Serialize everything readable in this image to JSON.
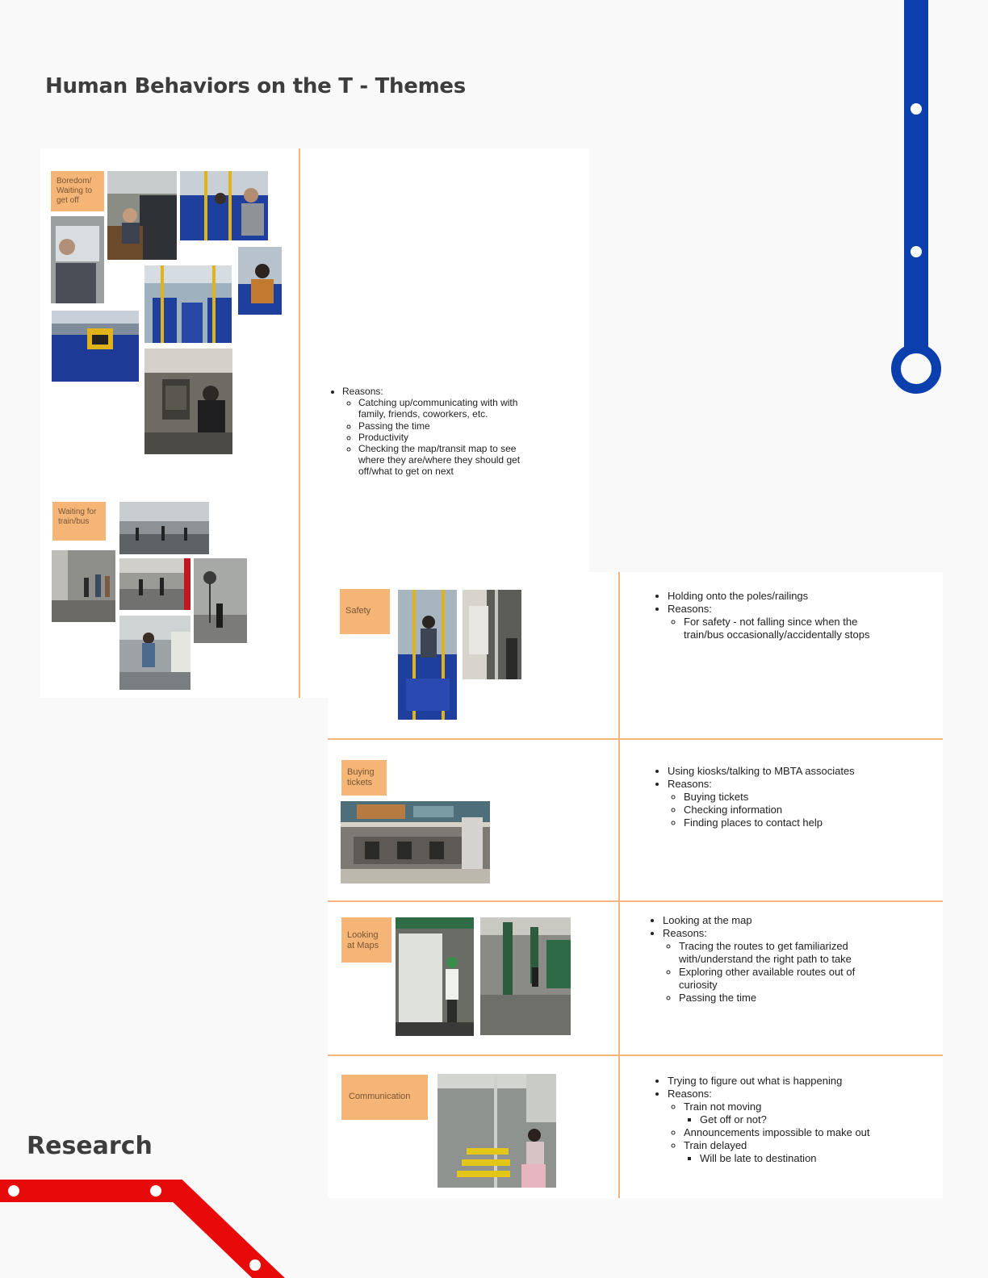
{
  "page": {
    "title": "Human Behaviors on the T - Themes",
    "footer_label": "Research"
  },
  "colors": {
    "blue_line": "#0b3fae",
    "red_line": "#e80a0a",
    "sticky": "#f4b577",
    "divider": "#f3b47e"
  },
  "board": {
    "boredom": {
      "sticky": "Boredom/ Waiting to get off",
      "notes": {
        "intro": "Reasons:",
        "items": [
          "Catching up/communicating with with family, friends, coworkers, etc.",
          "Passing the time",
          "Productivity",
          "Checking the map/transit map to see where they are/where they should get off/what to get on next"
        ]
      }
    },
    "waiting": {
      "sticky": "Waiting for train/bus"
    },
    "safety": {
      "sticky": "Safety",
      "notes": {
        "item1": "Holding onto the poles/railings",
        "item2": "Reasons:",
        "sub": [
          "For safety - not falling since when the train/bus occasionally/accidentally stops"
        ]
      }
    },
    "tickets": {
      "sticky": "Buying tickets",
      "notes": {
        "item1": "Using kiosks/talking to MBTA associates",
        "item2": "Reasons:",
        "sub": [
          "Buying tickets",
          "Checking information",
          "Finding places to contact help"
        ]
      }
    },
    "maps": {
      "sticky": "Looking at Maps",
      "notes": {
        "item1": "Looking at the map",
        "item2": "Reasons:",
        "sub": [
          "Tracing the routes to get familiarized with/understand the right path to take",
          "Exploring other available routes out of curiosity",
          "Passing the time"
        ]
      }
    },
    "communication": {
      "sticky": "Communication",
      "notes": {
        "item1": "Trying to figure out what is happening",
        "item2": "Reasons:",
        "sub1": "Train not moving",
        "sub1a": "Get off or not?",
        "sub2": "Announcements impossible to make out",
        "sub3": "Train delayed",
        "sub3a": "Will be late to destination"
      }
    }
  },
  "photos": [
    {
      "name": "photo-bus-passengers-seated",
      "theme": "bus"
    },
    {
      "name": "photo-bus-window-passenger",
      "theme": "window"
    },
    {
      "name": "photo-bus-seat-rider",
      "theme": "bus"
    },
    {
      "name": "photo-bus-interior-empty",
      "theme": "bus"
    },
    {
      "name": "photo-station-platform",
      "theme": "station"
    },
    {
      "name": "photo-poles-railings",
      "theme": "bus"
    },
    {
      "name": "photo-ticket-kiosk",
      "theme": "station"
    },
    {
      "name": "photo-map-wall",
      "theme": "green"
    },
    {
      "name": "photo-subway-interior",
      "theme": "train"
    }
  ]
}
